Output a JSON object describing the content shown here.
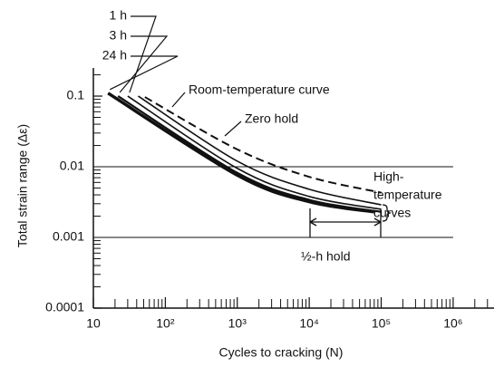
{
  "chart_data": {
    "type": "line",
    "x_label": "Cycles to cracking (N)",
    "y_label": "Total strain range (Δε)",
    "log_x": true,
    "log_y": true,
    "xlim": [
      10,
      3700000
    ],
    "ylim": [
      0.0001,
      0.25
    ],
    "xticks": [
      10,
      {
        "value": 100,
        "label": "10²"
      },
      {
        "value": 1000,
        "label": "10³"
      },
      {
        "value": 10000,
        "label": "10⁴"
      },
      {
        "value": 100000,
        "label": "10⁵"
      },
      {
        "value": 1000000,
        "label": "10⁶"
      }
    ],
    "yticks": [
      0.0001,
      0.001,
      0.01,
      0.1
    ],
    "grid": true,
    "minor_ticks": true,
    "series": [
      {
        "name": "Room-temperature curve",
        "color": "#111111",
        "dashed": true,
        "width": 2,
        "x": [
          52,
          1000,
          10000,
          100000
        ],
        "values": [
          0.097,
          0.0176,
          0.0072,
          0.0043
        ]
      },
      {
        "name": "Zero hold",
        "color": "#111111",
        "width": 1.6,
        "x": [
          42,
          1000,
          10000,
          100000
        ],
        "values": [
          0.1,
          0.012,
          0.0048,
          0.0029
        ]
      },
      {
        "name": "1 h",
        "color": "#111111",
        "width": 1.6,
        "x": [
          30,
          1000,
          10000,
          100000
        ],
        "values": [
          0.1,
          0.0095,
          0.0038,
          0.0025
        ]
      },
      {
        "name": "3 h",
        "color": "#111111",
        "width": 2.2,
        "x": [
          22,
          1000,
          10000,
          100000
        ],
        "values": [
          0.1,
          0.0082,
          0.0034,
          0.0023
        ]
      },
      {
        "name": "24 h",
        "color": "#111111",
        "width": 3.5,
        "x": [
          16,
          1000,
          10000,
          80000
        ],
        "values": [
          0.11,
          0.0076,
          0.0032,
          0.0023
        ]
      }
    ],
    "annotations": {
      "high_temperature": [
        "High-",
        "temperature",
        "curves"
      ],
      "half_hold": "½-h hold"
    }
  }
}
